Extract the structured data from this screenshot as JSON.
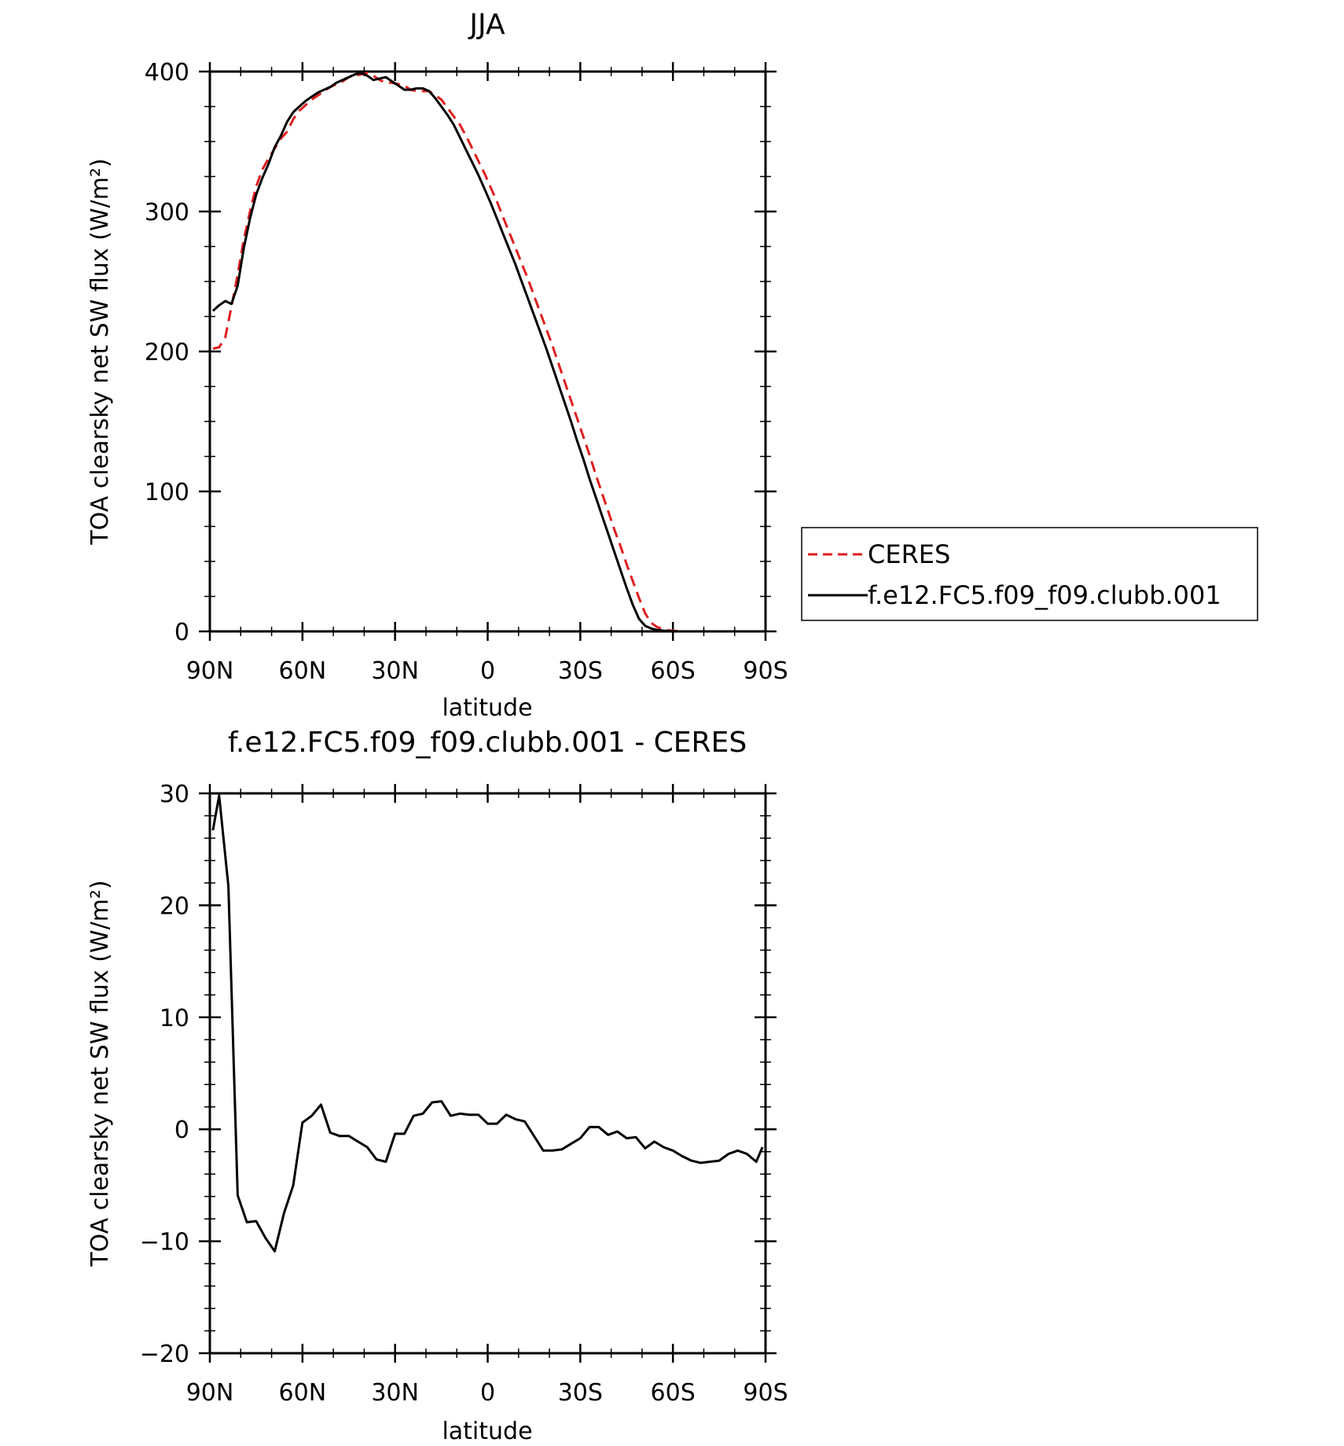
{
  "chart_data": [
    {
      "type": "line",
      "title": "JJA",
      "xlabel": "latitude",
      "ylabel": "TOA clearsky net SW flux (W/m²)",
      "xlim": [
        90,
        -90
      ],
      "ylim": [
        0,
        400
      ],
      "x_ticks": [
        90,
        60,
        30,
        0,
        -30,
        -60,
        -90
      ],
      "x_tick_labels": [
        "90N",
        "60N",
        "30N",
        "0",
        "30S",
        "60S",
        "90S"
      ],
      "y_ticks": [
        0,
        100,
        200,
        300,
        400
      ],
      "y_tick_labels": [
        "0",
        "100",
        "200",
        "300",
        "400"
      ],
      "legend": "right",
      "series": [
        {
          "name": "CERES",
          "color": "#e01e1e",
          "style": "dashed",
          "x": [
            89,
            87,
            85,
            83,
            81,
            79,
            77,
            75,
            73,
            71,
            69,
            67,
            65,
            63,
            61,
            59,
            57,
            55,
            53,
            51,
            49,
            47,
            45,
            43,
            41,
            39,
            37,
            35,
            33,
            31,
            29,
            27,
            25,
            23,
            21,
            19,
            17,
            15,
            13,
            11,
            9,
            7,
            5,
            3,
            1,
            -1,
            -3,
            -5,
            -7,
            -9,
            -11,
            -13,
            -15,
            -17,
            -19,
            -21,
            -23,
            -25,
            -27,
            -29,
            -31,
            -33,
            -35,
            -37,
            -39,
            -41,
            -43,
            -45,
            -47,
            -49,
            -51,
            -53,
            -55,
            -57,
            -59,
            -61,
            -63,
            -65,
            -67,
            -69,
            -71,
            -73,
            -75,
            -77,
            -79,
            -81,
            -83,
            -85,
            -87,
            -89
          ],
          "y": [
            202,
            203,
            210,
            232,
            255,
            280,
            300,
            318,
            330,
            338,
            345,
            352,
            357,
            366,
            372,
            376,
            380,
            383,
            386,
            389,
            391,
            393,
            396,
            397,
            398,
            399,
            397,
            394,
            392,
            392,
            391,
            390,
            387,
            386,
            386,
            386,
            383,
            380,
            374,
            368,
            362,
            354,
            345,
            336,
            327,
            317,
            307,
            296,
            285,
            274,
            263,
            252,
            240,
            228,
            216,
            204,
            191,
            178,
            165,
            152,
            139,
            126,
            112,
            99,
            86,
            73,
            61,
            48,
            36,
            24,
            13,
            6,
            3,
            1.5,
            0.7,
            0.3,
            0,
            0,
            0,
            0,
            0,
            0,
            0,
            0,
            0,
            0,
            0,
            0,
            0,
            0
          ]
        },
        {
          "name": "f.e12.FC5.f09_f09.clubb.001",
          "color": "#000000",
          "style": "solid",
          "x": [
            89,
            87,
            85,
            83,
            81,
            79,
            77,
            75,
            73,
            71,
            69,
            67,
            65,
            63,
            61,
            59,
            57,
            55,
            53,
            51,
            49,
            47,
            45,
            43,
            41,
            39,
            37,
            35,
            33,
            31,
            29,
            27,
            25,
            23,
            21,
            19,
            17,
            15,
            13,
            11,
            9,
            7,
            5,
            3,
            1,
            -1,
            -3,
            -5,
            -7,
            -9,
            -11,
            -13,
            -15,
            -17,
            -19,
            -21,
            -23,
            -25,
            -27,
            -29,
            -31,
            -33,
            -35,
            -37,
            -39,
            -41,
            -43,
            -45,
            -47,
            -49,
            -51,
            -53,
            -55,
            -57,
            -59,
            -61,
            -63,
            -65,
            -67,
            -69,
            -71,
            -73,
            -75,
            -77,
            -79,
            -81,
            -83,
            -85,
            -87,
            -89
          ],
          "y": [
            229,
            233,
            236,
            234,
            247,
            274,
            295,
            312,
            324,
            334,
            346,
            354,
            364,
            371,
            375,
            379,
            382,
            385,
            387,
            389,
            392,
            394,
            396,
            398,
            399,
            397,
            394,
            395,
            396,
            393,
            390,
            387,
            387,
            388,
            388,
            386,
            381,
            375,
            369,
            362,
            353,
            344,
            335,
            326,
            316,
            306,
            295,
            284,
            273,
            262,
            250,
            238,
            226,
            214,
            202,
            189,
            176,
            163,
            150,
            136,
            123,
            109,
            96,
            83,
            70,
            57,
            44,
            31,
            19,
            9,
            4,
            2,
            1,
            0.5,
            0.2,
            0,
            0,
            0,
            0,
            0,
            0,
            0,
            0,
            0,
            0,
            0,
            0,
            0,
            0,
            0
          ]
        }
      ]
    },
    {
      "type": "line",
      "title": "f.e12.FC5.f09_f09.clubb.001 - CERES",
      "xlabel": "latitude",
      "ylabel": "TOA clearsky net SW flux (W/m²)",
      "xlim": [
        90,
        -90
      ],
      "ylim": [
        -20,
        30
      ],
      "x_ticks": [
        90,
        60,
        30,
        0,
        -30,
        -60,
        -90
      ],
      "x_tick_labels": [
        "90N",
        "60N",
        "30N",
        "0",
        "30S",
        "60S",
        "90S"
      ],
      "y_ticks": [
        -20,
        -10,
        0,
        10,
        20,
        30
      ],
      "y_tick_labels": [
        "−20",
        "−10",
        "0",
        "10",
        "20",
        "30"
      ],
      "series": [
        {
          "color": "#000000",
          "style": "solid",
          "x": [
            89,
            87,
            84,
            81,
            78,
            75,
            72,
            69,
            66,
            63,
            60,
            57,
            54,
            51,
            48,
            45,
            42,
            39,
            36,
            33,
            30,
            27,
            24,
            21,
            18,
            15,
            12,
            9,
            6,
            3,
            0,
            -3,
            -6,
            -9,
            -12,
            -15,
            -18,
            -21,
            -24,
            -27,
            -30,
            -33,
            -36,
            -39,
            -42,
            -45,
            -48,
            -51,
            -54,
            -57,
            -60,
            -63,
            -66,
            -69,
            -72,
            -75,
            -78,
            -81,
            -84,
            -87,
            -89
          ],
          "y": [
            26.7,
            29.8,
            21.7,
            -5.9,
            -8.3,
            -8.2,
            -9.7,
            -10.9,
            -7.5,
            -5.0,
            0.6,
            1.2,
            2.2,
            -0.3,
            -0.6,
            -0.6,
            -1.1,
            -1.6,
            -2.7,
            -2.9,
            -0.4,
            -0.4,
            1.2,
            1.4,
            2.4,
            2.5,
            1.2,
            1.4,
            1.3,
            1.3,
            0.5,
            0.5,
            1.3,
            0.9,
            0.7,
            -0.6,
            -1.9,
            -1.9,
            -1.8,
            -1.3,
            -0.8,
            0.2,
            0.2,
            -0.5,
            -0.2,
            -0.8,
            -0.7,
            -1.7,
            -1.1,
            -1.6,
            -1.9,
            -2.4,
            -2.8,
            -3.0,
            -2.9,
            -2.8,
            -2.2,
            -1.9,
            -2.2,
            -2.9,
            -1.6
          ]
        }
      ]
    }
  ],
  "legend": {
    "entries": [
      {
        "label": "CERES",
        "color": "#e01e1e",
        "style": "dashed"
      },
      {
        "label": "f.e12.FC5.f09_f09.clubb.001",
        "color": "#000000",
        "style": "solid"
      }
    ]
  }
}
